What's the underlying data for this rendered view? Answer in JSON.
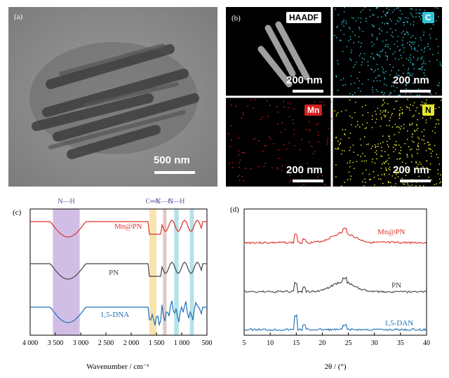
{
  "panel_a": {
    "label": "(a)",
    "scale": "500 nm"
  },
  "panel_b": {
    "label": "(b)",
    "tiles": [
      {
        "tag": "HAADF",
        "scale": "200 nm",
        "color": "#ffffff"
      },
      {
        "tag": "C",
        "scale": "200 nm",
        "color": "#2ec4d6"
      },
      {
        "tag": "Mn",
        "scale": "200 nm",
        "color": "#d42020"
      },
      {
        "tag": "N",
        "scale": "200 nm",
        "color": "#e6e62a"
      }
    ]
  },
  "chart_data": [
    {
      "type": "line",
      "panel": "(c)",
      "xlabel": "Wavenumber / cm⁻¹",
      "xlim": [
        4000,
        500
      ],
      "xticks": [
        "4 000",
        "3 500",
        "3 000",
        "2 500",
        "2 000",
        "1 500",
        "1 000",
        "500"
      ],
      "bands": [
        {
          "label": "N—H",
          "from": 3550,
          "to": 3020,
          "color": "#c9b3e0"
        },
        {
          "label": "C═N",
          "from": 1640,
          "to": 1500,
          "color": "#f6dfa0"
        },
        {
          "label": "C—N",
          "from": 1370,
          "to": 1300,
          "color": "#ddbdbd"
        },
        {
          "label": "C—H",
          "from": 1150,
          "to": 1060,
          "color": "#a8dde3"
        },
        {
          "label": "",
          "from": 840,
          "to": 760,
          "color": "#a8dde3"
        }
      ],
      "series": [
        {
          "name": "Mn@PN",
          "color": "#e0302b"
        },
        {
          "name": "PN",
          "color": "#444444"
        },
        {
          "name": "1,5-DNA",
          "color": "#1f6fb8"
        }
      ]
    },
    {
      "type": "line",
      "panel": "(d)",
      "xlabel": "2θ / (°)",
      "xlim": [
        5,
        40
      ],
      "xticks": [
        "5",
        "10",
        "15",
        "20",
        "25",
        "30",
        "35",
        "40"
      ],
      "series": [
        {
          "name": "Mn@PN",
          "color": "#e0302b"
        },
        {
          "name": "PN",
          "color": "#444444"
        },
        {
          "name": "1,5-DAN",
          "color": "#1f6fb8"
        }
      ]
    }
  ]
}
